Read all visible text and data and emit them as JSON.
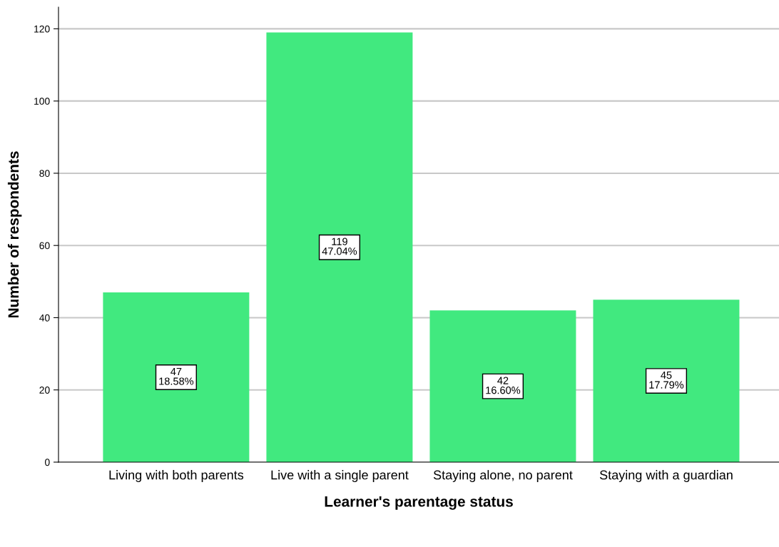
{
  "chart_data": {
    "type": "bar",
    "xlabel": "Learner's parentage status",
    "ylabel": "Number of respondents",
    "categories": [
      "Living with both parents",
      "Live with a single parent",
      "Staying alone, no parent",
      "Staying with a guardian"
    ],
    "values": [
      47,
      119,
      42,
      45
    ],
    "color": "#41e97f",
    "value_labels": [
      "47\n18.58%",
      "119\n47.04%",
      "42\n16.60%",
      "45\n17.79%"
    ],
    "ylim": [
      0,
      126
    ],
    "yticks": [
      0,
      20,
      40,
      60,
      80,
      100,
      120
    ],
    "grid": "y"
  }
}
